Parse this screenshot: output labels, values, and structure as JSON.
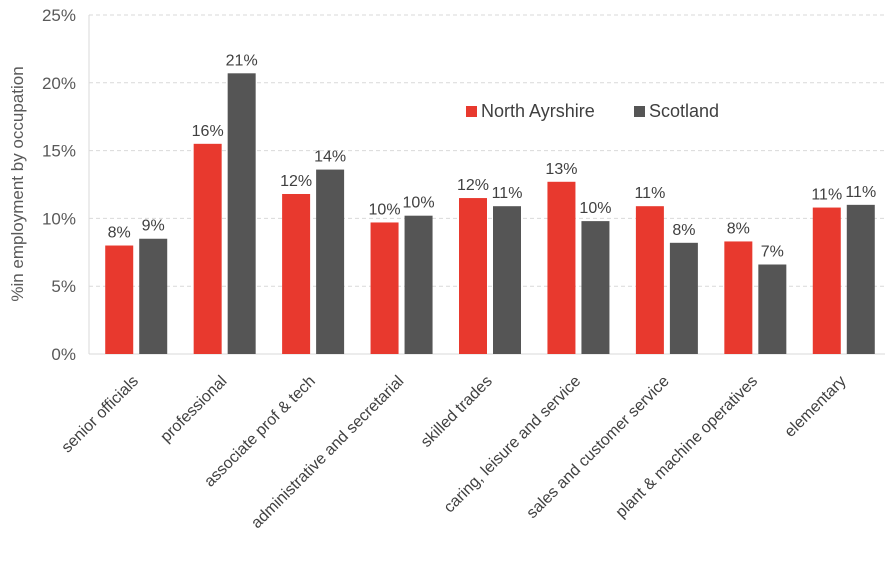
{
  "chart_data": {
    "type": "bar",
    "ylabel": "%in employment  by occupation",
    "ylim": [
      0,
      25
    ],
    "y_ticks": [
      "0%",
      "5%",
      "10%",
      "15%",
      "20%",
      "25%"
    ],
    "y_tick_values": [
      0,
      5,
      10,
      15,
      20,
      25
    ],
    "grid": true,
    "legend_position": "upper-right",
    "categories": [
      "senior officials",
      "professional",
      "associate prof & tech",
      "administrative and secretarial",
      "skilled trades",
      "caring, leisure and service",
      "sales and customer service",
      "plant & machine operatives",
      "elementary"
    ],
    "series": [
      {
        "name": "North Ayrshire",
        "color": "#e8392e",
        "values": [
          8.0,
          15.5,
          11.8,
          9.7,
          11.5,
          12.7,
          10.9,
          8.3,
          10.8
        ],
        "labels": [
          "8%",
          "16%",
          "12%",
          "10%",
          "12%",
          "13%",
          "11%",
          "8%",
          "11%"
        ]
      },
      {
        "name": "Scotland",
        "color": "#555555",
        "values": [
          8.5,
          20.7,
          13.6,
          10.2,
          10.9,
          9.8,
          8.2,
          6.6,
          11.0
        ],
        "labels": [
          "9%",
          "21%",
          "14%",
          "10%",
          "11%",
          "10%",
          "8%",
          "7%",
          "11%"
        ]
      }
    ]
  }
}
